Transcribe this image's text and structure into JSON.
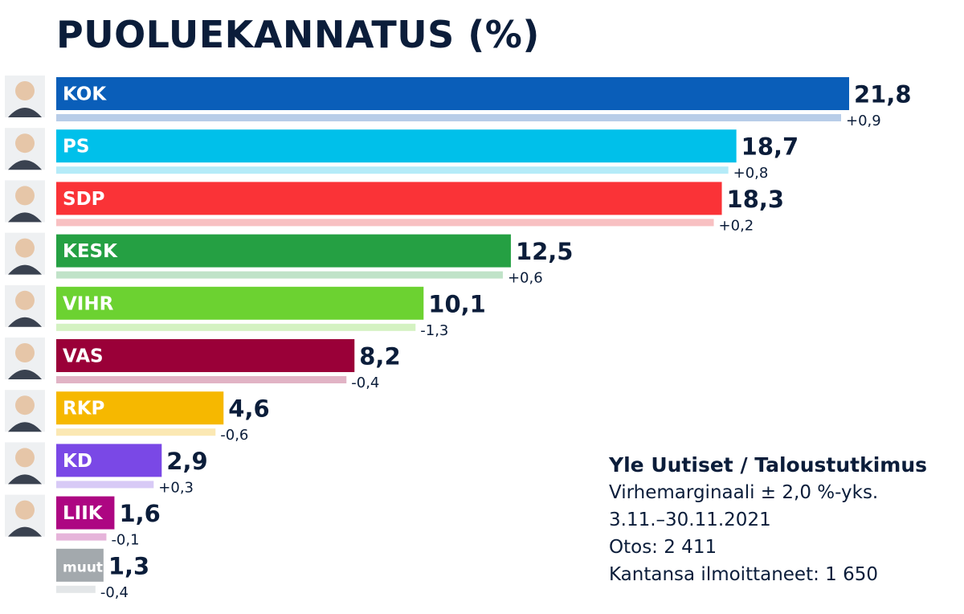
{
  "title": "PUOLUEKANNATUS (%)",
  "chart_data": {
    "type": "bar",
    "orientation": "horizontal",
    "title": "PUOLUEKANNATUS (%)",
    "categories": [
      "KOK",
      "PS",
      "SDP",
      "KESK",
      "VIHR",
      "VAS",
      "RKP",
      "KD",
      "LIIK",
      "muut"
    ],
    "values": [
      21.8,
      18.7,
      18.3,
      12.5,
      10.1,
      8.2,
      4.6,
      2.9,
      1.6,
      1.3
    ],
    "value_labels": [
      "21,8",
      "18,7",
      "18,3",
      "12,5",
      "10,1",
      "8,2",
      "4,6",
      "2,9",
      "1,6",
      "1,3"
    ],
    "change_labels": [
      "+0,9",
      "+0,8",
      "+0,2",
      "+0,6",
      "-1,3",
      "-0,4",
      "-0,6",
      "+0,3",
      "-0,1",
      "-0,4"
    ],
    "colors": [
      "#0a5eb9",
      "#00c0ea",
      "#fa3337",
      "#25a043",
      "#6cd231",
      "#9a0038",
      "#f6b800",
      "#7a48e6",
      "#ad0682",
      "#a3a9ad"
    ],
    "light_colors": [
      "#b8cde8",
      "#b5ebf8",
      "#f8c0c2",
      "#c0e3c8",
      "#d4f2c2",
      "#e1b3c5",
      "#fbe8b3",
      "#d8caf6",
      "#e6b4da",
      "#e3e6e8"
    ],
    "has_portrait": [
      true,
      true,
      true,
      true,
      true,
      true,
      true,
      true,
      true,
      false
    ],
    "xlim": [
      0,
      21.8
    ],
    "grid": false,
    "legend": "none"
  },
  "source": {
    "title": "Yle Uutiset / Taloustutkimus",
    "lines": [
      "Virhemarginaali ± 2,0 %-yks.",
      "3.11.–30.11.2021",
      "Otos: 2 411",
      "Kantansa ilmoittaneet: 1 650"
    ]
  }
}
